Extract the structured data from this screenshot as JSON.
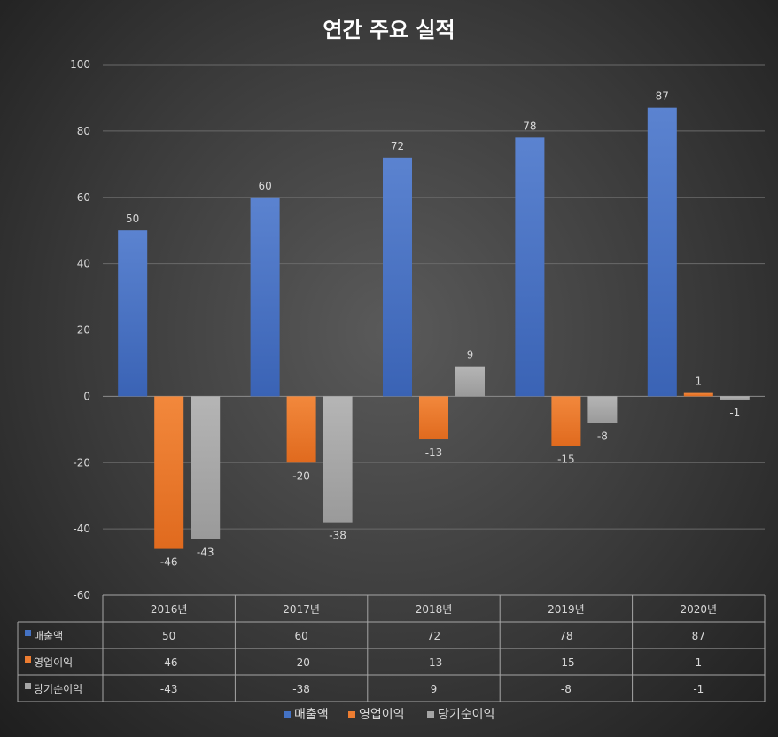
{
  "chart_data": {
    "type": "bar",
    "title": "연간 주요 실적",
    "categories": [
      "2016년",
      "2017년",
      "2018년",
      "2019년",
      "2020년"
    ],
    "series": [
      {
        "name": "매출액",
        "values": [
          50,
          60,
          72,
          78,
          87
        ]
      },
      {
        "name": "영업이익",
        "values": [
          -46,
          -20,
          -13,
          -15,
          1
        ]
      },
      {
        "name": "당기순이익",
        "values": [
          -43,
          -38,
          9,
          -8,
          -1
        ]
      }
    ],
    "ylim": [
      -60,
      100
    ],
    "yticks": [
      "100",
      "80",
      "60",
      "40",
      "20",
      "0",
      "-20",
      "-40",
      "-60"
    ],
    "grid": true,
    "data_table": true,
    "legend_position": "bottom"
  },
  "colors": {
    "series": [
      "#4472c4",
      "#ed7d31",
      "#a5a5a5"
    ]
  }
}
